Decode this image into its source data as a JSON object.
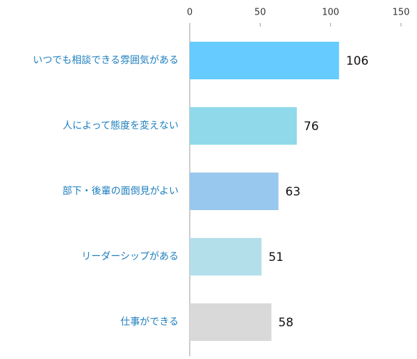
{
  "chart_data": {
    "type": "hbar",
    "categories": [
      "いつでも相談できる雰囲気がある",
      "人によって態度を変えない",
      "部下・後輩の面倒見がよい",
      "リーダーシップがある",
      "仕事ができる"
    ],
    "values": [
      106,
      76,
      63,
      51,
      58
    ],
    "colors": [
      "#66ccff",
      "#8fd9eb",
      "#99c8ee",
      "#b3dfeb",
      "#d9d9d9"
    ],
    "xlim": [
      0,
      150
    ],
    "xticks": [
      0,
      50,
      100,
      150
    ],
    "grid": false
  }
}
